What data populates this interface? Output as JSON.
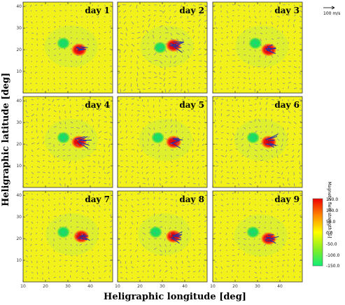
{
  "figure": {
    "ylabel": "Heligraphic latitude [deg]",
    "xlabel": "Heligraphic longitude [deg]",
    "vector_scale_label": "100 m/s",
    "colorbar_label": "Magnetic field strength [G]",
    "colorbar_ticks": [
      "150.0",
      "100.0",
      "50.0",
      "0.0",
      "-50.0",
      "-100.0",
      "-150.0"
    ],
    "colors": {
      "background": "#f2f21a",
      "positive": "#ee1111",
      "negative": "#22dd55",
      "vector": "#8a8a8a",
      "strong_vector": "#2233aa"
    }
  },
  "chart_data": {
    "type": "heatmap",
    "xlabel": "Heligraphic longitude [deg]",
    "ylabel": "Heligraphic latitude [deg]",
    "xlim": [
      10,
      50
    ],
    "ylim": [
      0,
      42
    ],
    "xticks": [
      10,
      20,
      30,
      40
    ],
    "yticks": [
      10,
      20,
      30,
      40
    ],
    "colorbar": {
      "label": "Magnetic field strength [G]",
      "range": [
        -150,
        150
      ],
      "ticks": [
        150,
        100,
        50,
        0,
        -50,
        -100,
        -150
      ]
    },
    "panels": [
      {
        "title": "day 1",
        "negative_spot": [
          28,
          23
        ],
        "positive_spot": [
          35,
          20
        ],
        "flow_scale": 0.6
      },
      {
        "title": "day 2",
        "negative_spot": [
          29,
          21
        ],
        "positive_spot": [
          35,
          22
        ],
        "flow_scale": 1.0
      },
      {
        "title": "day 3",
        "negative_spot": [
          29,
          23
        ],
        "positive_spot": [
          35,
          20
        ],
        "flow_scale": 0.8
      },
      {
        "title": "day 4",
        "negative_spot": [
          28,
          23
        ],
        "positive_spot": [
          35,
          21
        ],
        "flow_scale": 0.9
      },
      {
        "title": "day 5",
        "negative_spot": [
          28,
          23
        ],
        "positive_spot": [
          35,
          21
        ],
        "flow_scale": 0.8
      },
      {
        "title": "day 6",
        "negative_spot": [
          28,
          23
        ],
        "positive_spot": [
          35,
          21
        ],
        "flow_scale": 0.9
      },
      {
        "title": "day 7",
        "negative_spot": [
          28,
          23
        ],
        "positive_spot": [
          36,
          21
        ],
        "flow_scale": 0.7
      },
      {
        "title": "day 8",
        "negative_spot": [
          27,
          23
        ],
        "positive_spot": [
          35,
          21
        ],
        "flow_scale": 0.8
      },
      {
        "title": "day 9",
        "negative_spot": [
          28,
          23
        ],
        "positive_spot": [
          35,
          20
        ],
        "flow_scale": 0.7
      }
    ]
  }
}
